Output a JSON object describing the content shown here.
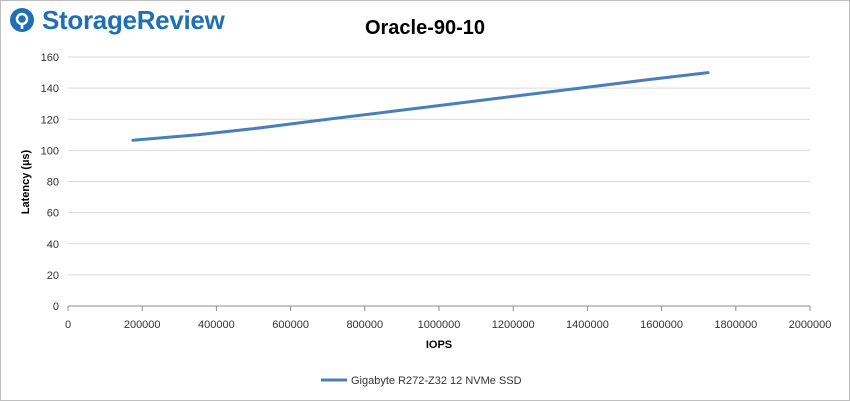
{
  "brand": {
    "name": "StorageReview",
    "color": "#1f6fb5",
    "icon": "storagereview-logo-icon"
  },
  "chart_data": {
    "type": "line",
    "title": "Oracle-90-10",
    "xlabel": "IOPS",
    "ylabel": "Latency (µs)",
    "xlim": [
      0,
      2000000
    ],
    "ylim": [
      0,
      160
    ],
    "x_ticks": [
      0,
      200000,
      400000,
      600000,
      800000,
      1000000,
      1200000,
      1400000,
      1600000,
      1800000,
      2000000
    ],
    "y_ticks": [
      0,
      20,
      40,
      60,
      80,
      100,
      120,
      140,
      160
    ],
    "grid": true,
    "legend_position": "bottom",
    "series": [
      {
        "name": "Gigabyte R272-Z32 12 NVMe SSD",
        "color": "#4a7ebb",
        "x": [
          175000,
          350000,
          520000,
          700000,
          870000,
          1040000,
          1210000,
          1380000,
          1550000,
          1725000
        ],
        "y": [
          106.5,
          110,
          114.5,
          120,
          125,
          130,
          135,
          140,
          145,
          150
        ]
      }
    ]
  }
}
